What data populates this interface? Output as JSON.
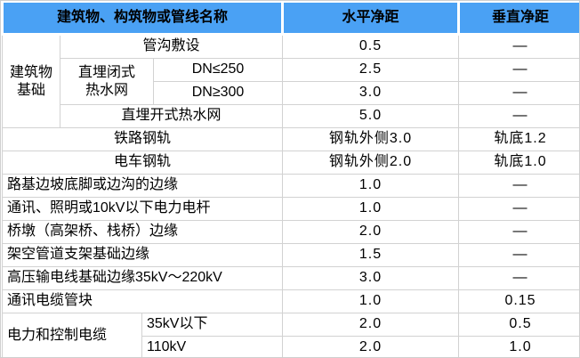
{
  "table": {
    "header": {
      "name_col": "建筑物、构筑物或管线名称",
      "horizontal_col": "水平净距",
      "vertical_col": "垂直净距"
    },
    "group_labels": {
      "building_foundation": "建筑物\n基础",
      "buried_closed_hot_water": "直埋闭式\n热水网",
      "power_control_cable": "电力和控制电缆"
    },
    "rows": [
      {
        "name": "管沟敷设",
        "h": "0.5",
        "v": "—"
      },
      {
        "name": "DN≤250",
        "h": "2.5",
        "v": "—"
      },
      {
        "name": "DN≥300",
        "h": "3.0",
        "v": "—"
      },
      {
        "name": "直埋开式热水网",
        "h": "5.0",
        "v": "—"
      },
      {
        "name": "铁路钢轨",
        "h": "钢轨外侧3.0",
        "v": "轨底1.2"
      },
      {
        "name": "电车钢轨",
        "h": "钢轨外侧2.0",
        "v": "轨底1.0"
      },
      {
        "name": "路基边坡底脚或边沟的边缘",
        "h": "1.0",
        "v": "—"
      },
      {
        "name": "通讯、照明或10kV以下电力电杆",
        "h": "1.0",
        "v": "—"
      },
      {
        "name": "桥墩（高架桥、栈桥）边缘",
        "h": "2.0",
        "v": "—"
      },
      {
        "name": "架空管道支架基础边缘",
        "h": "1.5",
        "v": "—"
      },
      {
        "name": "高压输电线基础边缘35kV～220kV",
        "h": "3.0",
        "v": "—"
      },
      {
        "name": "通讯电缆管块",
        "h": "1.0",
        "v": "0.15"
      },
      {
        "name": "35kV以下",
        "h": "2.0",
        "v": "0.5"
      },
      {
        "name": "110kV",
        "h": "2.0",
        "v": "1.0"
      }
    ],
    "colors": {
      "header_bg": "#4aa1f4",
      "grid_line": "#d2d2d2",
      "text": "#000000",
      "cell_bg": "#ffffff"
    }
  }
}
